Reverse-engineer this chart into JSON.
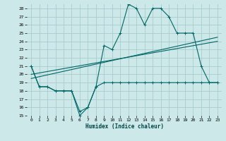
{
  "background_color": "#cce8e8",
  "grid_color": "#aacccc",
  "line_color": "#006666",
  "xlabel": "Humidex (Indice chaleur)",
  "ylim": [
    15,
    28.5
  ],
  "xlim": [
    -0.5,
    23.5
  ],
  "yticks": [
    15,
    16,
    17,
    18,
    19,
    20,
    21,
    22,
    23,
    24,
    25,
    26,
    27,
    28
  ],
  "xticks": [
    0,
    1,
    2,
    3,
    4,
    5,
    6,
    7,
    8,
    9,
    10,
    11,
    12,
    13,
    14,
    15,
    16,
    17,
    18,
    19,
    20,
    21,
    22,
    23
  ],
  "series1_x": [
    0,
    1,
    2,
    3,
    4,
    5,
    6,
    7,
    8,
    9,
    10,
    11,
    12,
    13,
    14,
    15,
    16,
    17,
    18,
    19,
    20,
    21,
    22,
    23
  ],
  "series1_y": [
    21,
    18.5,
    18.5,
    18,
    18,
    18,
    15,
    16,
    18.5,
    23.5,
    23,
    25,
    28.5,
    28,
    26,
    28,
    28,
    27,
    25,
    25,
    25,
    21,
    19,
    19
  ],
  "series2_x": [
    0,
    1,
    2,
    3,
    4,
    5,
    6,
    7,
    8,
    9,
    10,
    11,
    12,
    13,
    14,
    15,
    16,
    17,
    18,
    19,
    20,
    21,
    22,
    23
  ],
  "series2_y": [
    21,
    18.5,
    18.5,
    18,
    18,
    18,
    15.5,
    16,
    18.5,
    19,
    19,
    19,
    19,
    19,
    19,
    19,
    19,
    19,
    19,
    19,
    19,
    19,
    19,
    19
  ],
  "series3_x": [
    0,
    23
  ],
  "series3_y": [
    19.5,
    24.5
  ],
  "series4_x": [
    0,
    23
  ],
  "series4_y": [
    20,
    24
  ]
}
